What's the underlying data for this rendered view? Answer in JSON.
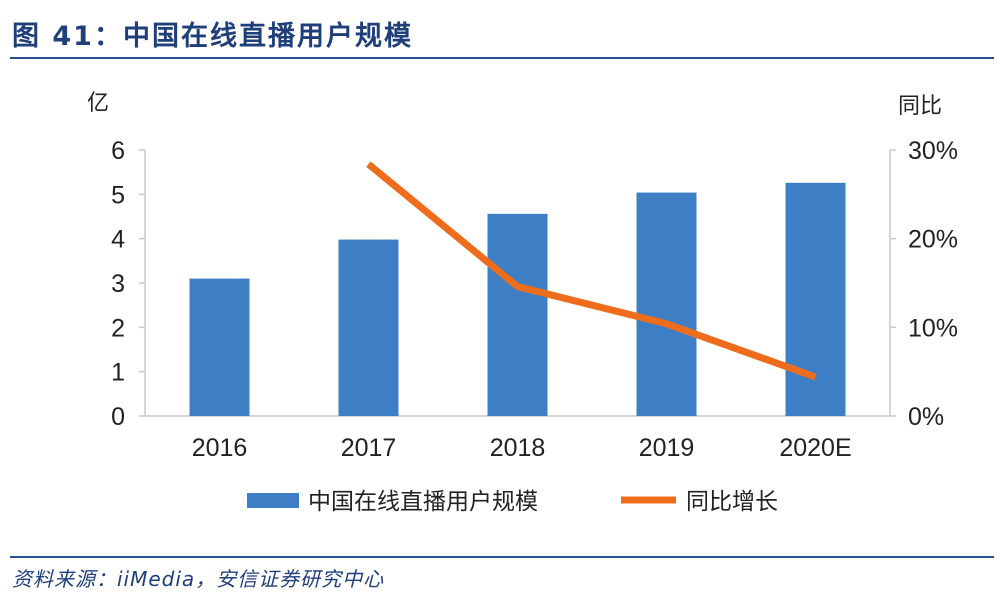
{
  "figure": {
    "title": "图 41：中国在线直播用户规模",
    "source": "资料来源：iiMedia，安信证券研究中心"
  },
  "chart_data": {
    "type": "bar",
    "categories": [
      "2016",
      "2017",
      "2018",
      "2019",
      "2020E"
    ],
    "series": [
      {
        "name": "中国在线直播用户规模",
        "type": "bar",
        "axis": "left",
        "values": [
          3.1,
          3.98,
          4.56,
          5.04,
          5.26
        ],
        "color": "#3d7ec5"
      },
      {
        "name": "同比增长",
        "type": "line",
        "axis": "right",
        "values": [
          null,
          28.4,
          14.6,
          10.4,
          4.4
        ],
        "color": "#ee6d1d"
      }
    ],
    "y_left": {
      "label": "亿",
      "ylim": [
        0,
        6
      ],
      "ticks": [
        "0",
        "1",
        "2",
        "3",
        "4",
        "5",
        "6"
      ]
    },
    "y_right": {
      "label": "同比",
      "ylim": [
        0,
        30
      ],
      "ticks": [
        "0%",
        "10%",
        "20%",
        "30%"
      ]
    },
    "legend": "bottom-center",
    "grid": false
  }
}
